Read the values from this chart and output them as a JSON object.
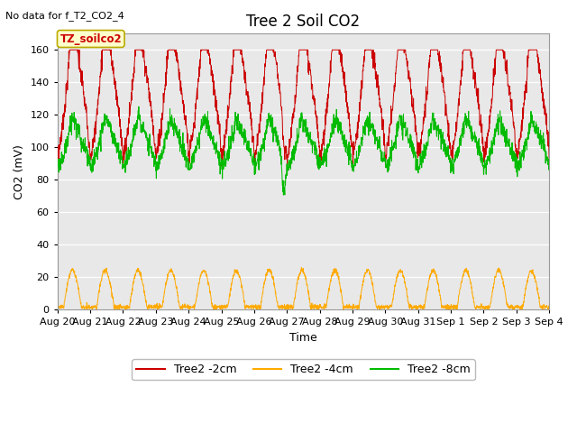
{
  "title": "Tree 2 Soil CO2",
  "no_data_text": "No data for f_T2_CO2_4",
  "xlabel": "Time",
  "ylabel": "CO2 (mV)",
  "ylim": [
    0,
    170
  ],
  "yticks": [
    0,
    20,
    40,
    60,
    80,
    100,
    120,
    140,
    160
  ],
  "xlim_days": [
    0,
    15
  ],
  "x_tick_labels": [
    "Aug 20",
    "Aug 21",
    "Aug 22",
    "Aug 23",
    "Aug 24",
    "Aug 25",
    "Aug 26",
    "Aug 27",
    "Aug 28",
    "Aug 29",
    "Aug 30",
    "Aug 31",
    "Sep 1",
    "Sep 2",
    "Sep 3",
    "Sep 4"
  ],
  "fig_bg_color": "#ffffff",
  "plot_bg_color": "#e8e8e8",
  "line_red_color": "#cc0000",
  "line_orange_color": "#ffaa00",
  "line_green_color": "#00bb00",
  "legend_label_red": "Tree2 -2cm",
  "legend_label_orange": "Tree2 -4cm",
  "legend_label_green": "Tree2 -8cm",
  "box_label": "TZ_soilco2",
  "box_bg": "#ffffcc",
  "box_border": "#bbaa00",
  "title_fontsize": 12,
  "label_fontsize": 9,
  "tick_fontsize": 8,
  "legend_fontsize": 9,
  "no_data_fontsize": 8
}
